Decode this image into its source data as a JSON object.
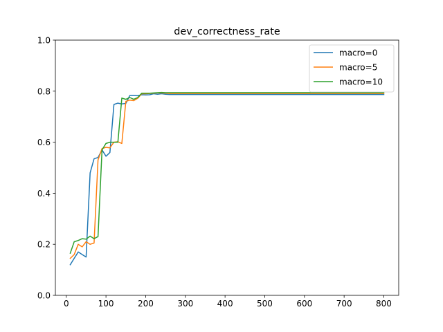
{
  "chart_data": {
    "type": "line",
    "title": "dev_correctness_rate",
    "xlabel": "",
    "ylabel": "",
    "xlim": [
      -27.5,
      837.5
    ],
    "ylim": [
      0.0,
      1.0
    ],
    "xticks": [
      0,
      100,
      200,
      300,
      400,
      500,
      600,
      700,
      800
    ],
    "xtick_labels": [
      "0",
      "100",
      "200",
      "300",
      "400",
      "500",
      "600",
      "700",
      "800"
    ],
    "yticks": [
      0.0,
      0.2,
      0.4,
      0.6,
      0.8,
      1.0
    ],
    "ytick_labels": [
      "0.0",
      "0.2",
      "0.4",
      "0.6",
      "0.8",
      "1.0"
    ],
    "grid": false,
    "legend_position": "upper right",
    "series": [
      {
        "name": "macro=0",
        "color": "#1f77b4",
        "x": [
          10,
          20,
          30,
          40,
          50,
          60,
          70,
          80,
          90,
          100,
          110,
          120,
          130,
          140,
          150,
          160,
          170,
          180,
          190,
          200,
          210,
          220,
          230,
          240,
          250,
          260,
          300,
          400,
          500,
          600,
          700,
          800
        ],
        "y": [
          0.12,
          0.145,
          0.17,
          0.16,
          0.15,
          0.48,
          0.535,
          0.54,
          0.57,
          0.545,
          0.56,
          0.748,
          0.753,
          0.75,
          0.752,
          0.783,
          0.783,
          0.782,
          0.786,
          0.785,
          0.786,
          0.79,
          0.788,
          0.79,
          0.788,
          0.787,
          0.787,
          0.787,
          0.787,
          0.787,
          0.787,
          0.787
        ]
      },
      {
        "name": "macro=5",
        "color": "#ff7f0e",
        "x": [
          10,
          20,
          30,
          40,
          50,
          60,
          70,
          80,
          90,
          100,
          110,
          120,
          130,
          140,
          150,
          160,
          170,
          180,
          190,
          200,
          210,
          220,
          230,
          240,
          250,
          260,
          300,
          400,
          500,
          600,
          700,
          800
        ],
        "y": [
          0.145,
          0.16,
          0.2,
          0.19,
          0.21,
          0.2,
          0.205,
          0.53,
          0.575,
          0.58,
          0.578,
          0.6,
          0.602,
          0.595,
          0.76,
          0.765,
          0.763,
          0.772,
          0.79,
          0.79,
          0.791,
          0.792,
          0.793,
          0.793,
          0.792,
          0.791,
          0.791,
          0.791,
          0.791,
          0.791,
          0.791,
          0.791
        ]
      },
      {
        "name": "macro=10",
        "color": "#2ca02c",
        "x": [
          10,
          20,
          30,
          40,
          50,
          60,
          70,
          80,
          90,
          100,
          110,
          120,
          130,
          140,
          150,
          160,
          170,
          180,
          190,
          200,
          210,
          220,
          230,
          240,
          250,
          260,
          300,
          400,
          500,
          600,
          700,
          800
        ],
        "y": [
          0.165,
          0.21,
          0.215,
          0.222,
          0.22,
          0.232,
          0.222,
          0.23,
          0.57,
          0.595,
          0.6,
          0.6,
          0.6,
          0.773,
          0.768,
          0.775,
          0.768,
          0.775,
          0.792,
          0.792,
          0.792,
          0.793,
          0.794,
          0.795,
          0.794,
          0.794,
          0.794,
          0.794,
          0.794,
          0.794,
          0.794,
          0.794
        ]
      }
    ]
  }
}
